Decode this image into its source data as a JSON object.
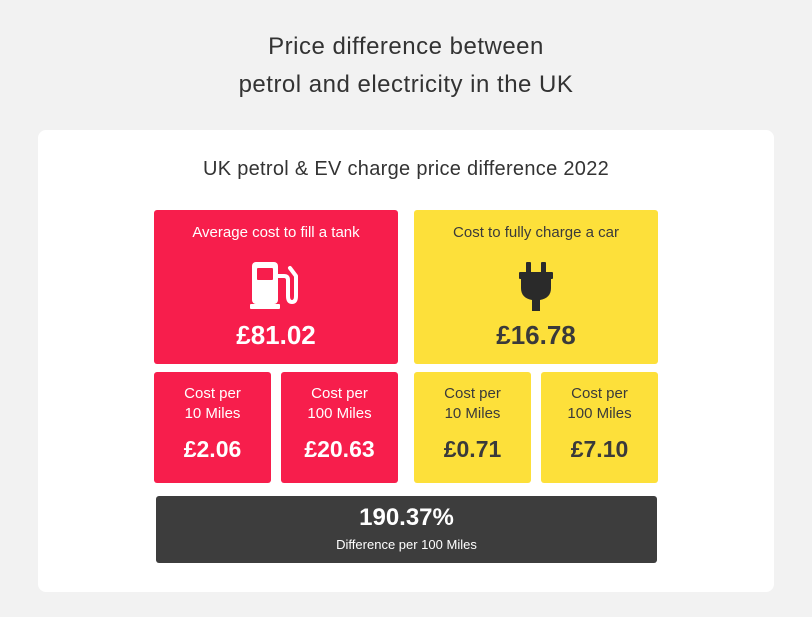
{
  "title": {
    "line1": "Price difference between",
    "line2": "petrol and electricity in the UK"
  },
  "card": {
    "title": "UK petrol & EV charge price difference 2022"
  },
  "petrol": {
    "color": "#f71e4c",
    "icon": "fuel-pump-icon",
    "label": "Average cost to fill a tank",
    "value": "£81.02",
    "per10": {
      "label_line1": "Cost per",
      "label_line2": "10 Miles",
      "value": "£2.06"
    },
    "per100": {
      "label_line1": "Cost per",
      "label_line2": "100 Miles",
      "value": "£20.63"
    }
  },
  "ev": {
    "color": "#fde03a",
    "icon": "plug-icon",
    "label": "Cost to fully charge a car",
    "value": "£16.78",
    "per10": {
      "label_line1": "Cost per",
      "label_line2": "10 Miles",
      "value": "£0.71"
    },
    "per100": {
      "label_line1": "Cost per",
      "label_line2": "100 Miles",
      "value": "£7.10"
    }
  },
  "difference": {
    "value": "190.37%",
    "label": "Difference per 100 Miles"
  }
}
